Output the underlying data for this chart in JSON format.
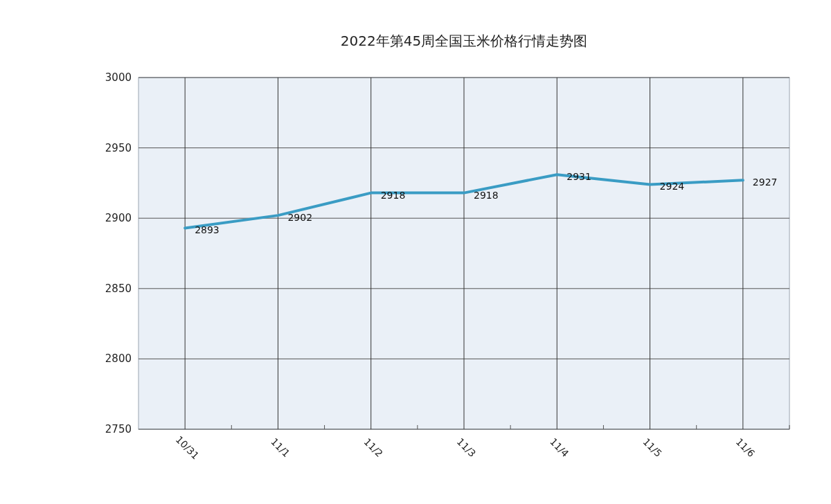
{
  "chart_data": {
    "type": "line",
    "title": "2022年第45周全国玉米价格行情走势图",
    "categories": [
      "10/31",
      "11/1",
      "11/2",
      "11/3",
      "11/4",
      "11/5",
      "11/6"
    ],
    "values": [
      2893,
      2902,
      2918,
      2918,
      2931,
      2924,
      2927
    ],
    "color": "#3a9cc4",
    "ylim": [
      2750,
      3000
    ],
    "yticks": [
      2750,
      2800,
      2850,
      2900,
      2950,
      3000
    ],
    "grid": true,
    "data_labels": true
  }
}
